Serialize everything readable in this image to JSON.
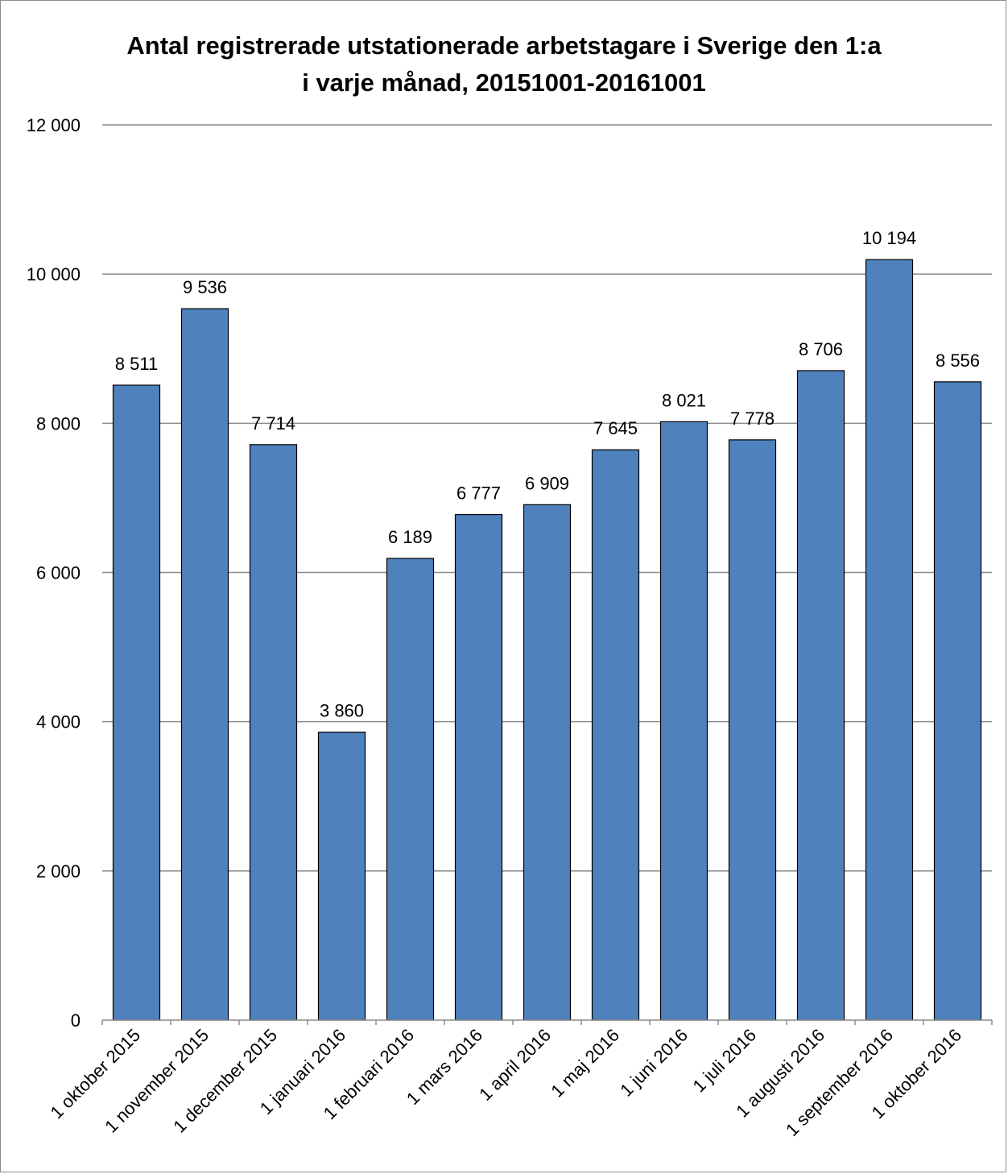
{
  "chart_data": {
    "type": "bar",
    "title_line1": "Antal registrerade utstationerade arbetstagare i Sverige den 1:a",
    "title_line2": "i varje månad, 20151001-20161001",
    "categories": [
      "1 oktober 2015",
      "1 november 2015",
      "1 december 2015",
      "1 januari 2016",
      "1 februari 2016",
      "1 mars 2016",
      "1 april 2016",
      "1 maj 2016",
      "1 juni 2016",
      "1 juli 2016",
      "1 augusti 2016",
      "1 september 2016",
      "1 oktober 2016"
    ],
    "values": [
      8511,
      9536,
      7714,
      3860,
      6189,
      6777,
      6909,
      7645,
      8021,
      7778,
      8706,
      10194,
      8556
    ],
    "value_labels": [
      "8 511",
      "9 536",
      "7 714",
      "3 860",
      "6 189",
      "6 777",
      "6 909",
      "7 645",
      "8 021",
      "7 778",
      "8 706",
      "10 194",
      "8 556"
    ],
    "yticks": [
      0,
      2000,
      4000,
      6000,
      8000,
      10000,
      12000
    ],
    "ytick_labels": [
      "0",
      "2 000",
      "4 000",
      "6 000",
      "8 000",
      "10 000",
      "12 000"
    ],
    "ylim": [
      0,
      12000
    ],
    "grid": true,
    "legend": "none",
    "bar_color": "#4f81bd",
    "bar_edge_color": "#000000",
    "grid_color": "#8c8c8c"
  }
}
